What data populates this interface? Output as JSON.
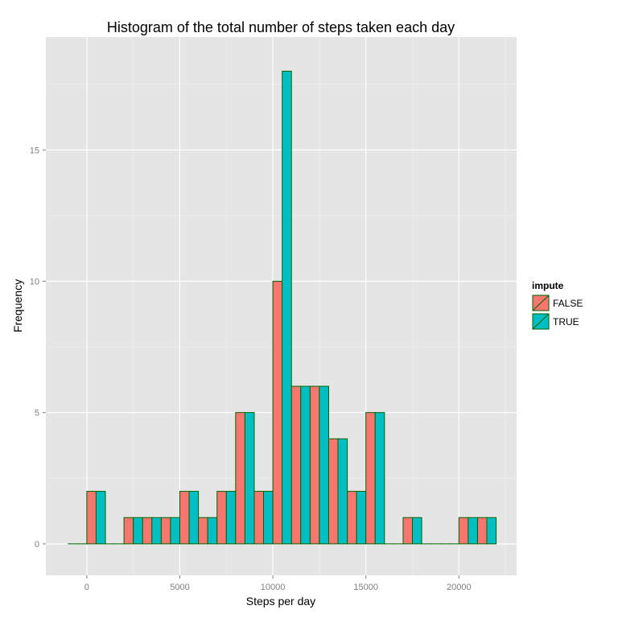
{
  "chart_data": {
    "type": "bar",
    "title": "Histogram of the total number of steps taken each day",
    "xlabel": "Steps per day",
    "ylabel": "Frequency",
    "xlim": [
      -2200,
      23100
    ],
    "ylim": [
      -1.2,
      19.3
    ],
    "x_ticks": [
      0,
      5000,
      10000,
      15000,
      20000
    ],
    "x_tick_labels": [
      "0",
      "5000",
      "10000",
      "15000",
      "20000"
    ],
    "y_ticks": [
      0,
      5,
      10,
      15
    ],
    "y_tick_labels": [
      "0",
      "5",
      "10",
      "15"
    ],
    "grid": true,
    "legend_position": "right",
    "legend_title": "impute",
    "dodge_width": 1000,
    "bin_centers": [
      -500,
      500,
      1500,
      2500,
      3500,
      4500,
      5500,
      6500,
      7500,
      8500,
      9500,
      10500,
      11500,
      12500,
      13500,
      14500,
      15500,
      16500,
      17500,
      18500,
      19500,
      20500,
      21500
    ],
    "series": [
      {
        "name": "FALSE",
        "color": "#f8766d",
        "values": [
          0,
          2,
          0,
          1,
          1,
          1,
          2,
          1,
          2,
          5,
          2,
          10,
          6,
          6,
          4,
          2,
          5,
          0,
          1,
          0,
          0,
          1,
          1
        ]
      },
      {
        "name": "TRUE",
        "color": "#00bfc4",
        "values": [
          0,
          2,
          0,
          1,
          1,
          1,
          2,
          1,
          2,
          5,
          2,
          18,
          6,
          6,
          4,
          2,
          5,
          0,
          1,
          0,
          0,
          1,
          1
        ]
      }
    ],
    "bar_outline_color": "#006400",
    "panel_background": "#e5e5e5"
  }
}
